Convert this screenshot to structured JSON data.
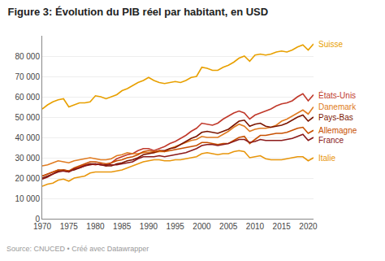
{
  "chart_data": {
    "type": "line",
    "title": "Figure 3: Évolution du PIB réel par habitant, en USD",
    "source": "Source: CNUCED • Créé avec Datawrapper",
    "x": [
      1970,
      1971,
      1972,
      1973,
      1974,
      1975,
      1976,
      1977,
      1978,
      1979,
      1980,
      1981,
      1982,
      1983,
      1984,
      1985,
      1986,
      1987,
      1988,
      1989,
      1990,
      1991,
      1992,
      1993,
      1994,
      1995,
      1996,
      1997,
      1998,
      1999,
      2000,
      2001,
      2002,
      2003,
      2004,
      2005,
      2006,
      2007,
      2008,
      2009,
      2010,
      2011,
      2012,
      2013,
      2014,
      2015,
      2016,
      2017,
      2018,
      2019,
      2020,
      2021
    ],
    "series": [
      {
        "name": "Suisse",
        "color": "#e8a000",
        "values": [
          54000,
          56000,
          57500,
          58500,
          59000,
          55000,
          56000,
          57000,
          57000,
          57500,
          60500,
          60000,
          59000,
          60000,
          61000,
          63000,
          64000,
          65500,
          67000,
          68000,
          69500,
          68000,
          67000,
          66500,
          67000,
          67500,
          67000,
          68000,
          69500,
          70000,
          74500,
          74000,
          73000,
          73000,
          74500,
          75500,
          77000,
          79000,
          80000,
          77500,
          80500,
          81000,
          80500,
          81000,
          82000,
          82500,
          82000,
          83000,
          84500,
          85500,
          83000,
          86000
        ]
      },
      {
        "name": "États-Unis",
        "color": "#c0392b",
        "values": [
          21000,
          22000,
          23000,
          24000,
          23500,
          23000,
          24500,
          25500,
          26500,
          27000,
          26500,
          27000,
          26000,
          27500,
          29500,
          30500,
          31500,
          32000,
          33500,
          34500,
          34500,
          33500,
          34500,
          35500,
          37000,
          38000,
          39500,
          41000,
          43000,
          44500,
          47000,
          46500,
          46000,
          47000,
          49000,
          50500,
          52000,
          53000,
          52000,
          49000,
          51000,
          52000,
          53000,
          54000,
          55500,
          56500,
          57000,
          58000,
          60000,
          61500,
          58000,
          61000
        ]
      },
      {
        "name": "Danemark",
        "color": "#e07b20",
        "values": [
          26000,
          26500,
          27500,
          28500,
          28000,
          27500,
          28500,
          29000,
          29500,
          30000,
          29500,
          29000,
          29000,
          29500,
          31000,
          31500,
          32500,
          32000,
          32000,
          32500,
          32500,
          32500,
          33000,
          33000,
          34500,
          35500,
          36500,
          37500,
          38500,
          39000,
          40500,
          40000,
          40000,
          40000,
          41500,
          43000,
          45000,
          46500,
          45500,
          43000,
          44000,
          44500,
          44500,
          45000,
          46000,
          48000,
          49000,
          50500,
          52000,
          53500,
          51500,
          55000
        ]
      },
      {
        "name": "Pays-Bas",
        "color": "#7b1500",
        "values": [
          20000,
          21000,
          22000,
          23500,
          24000,
          23500,
          24000,
          25000,
          26000,
          27000,
          27000,
          26500,
          26000,
          26000,
          27000,
          27500,
          28500,
          29000,
          30000,
          31500,
          32000,
          32500,
          33500,
          33500,
          34500,
          35000,
          36500,
          38000,
          39500,
          40500,
          42500,
          43000,
          42500,
          42000,
          43000,
          44000,
          46000,
          48000,
          48500,
          45500,
          46500,
          47000,
          45500,
          45000,
          45500,
          46000,
          47000,
          48500,
          50000,
          51000,
          48000,
          50000
        ]
      },
      {
        "name": "Allemagne",
        "color": "#c85000",
        "values": [
          21000,
          22000,
          23000,
          24000,
          24000,
          23500,
          25000,
          26000,
          27000,
          28000,
          28000,
          27500,
          27000,
          27500,
          28500,
          29000,
          30000,
          30500,
          31500,
          33000,
          33500,
          33000,
          33500,
          33000,
          33500,
          34000,
          34500,
          35000,
          35500,
          36000,
          37500,
          37500,
          37000,
          36500,
          37000,
          37000,
          38500,
          40000,
          40500,
          37000,
          39000,
          41000,
          41000,
          41500,
          42000,
          42000,
          42500,
          43500,
          44500,
          45000,
          42000,
          43500
        ]
      },
      {
        "name": "France",
        "color": "#8b1a1a",
        "values": [
          19500,
          20500,
          22000,
          23000,
          23500,
          23000,
          24500,
          25000,
          26000,
          26500,
          27000,
          26500,
          26500,
          26500,
          26500,
          27000,
          27500,
          28000,
          29500,
          30500,
          30500,
          30500,
          31000,
          30500,
          31000,
          31500,
          32000,
          32500,
          33500,
          34500,
          36000,
          36500,
          36500,
          36000,
          36500,
          37000,
          38000,
          39000,
          39000,
          37500,
          38000,
          39000,
          38500,
          38500,
          38500,
          38500,
          39000,
          39500,
          40500,
          41500,
          38500,
          40000
        ]
      },
      {
        "name": "Italie",
        "color": "#e8960c",
        "values": [
          16000,
          17000,
          17500,
          19000,
          19500,
          18500,
          20000,
          20500,
          21000,
          22500,
          23000,
          23000,
          23000,
          23000,
          23500,
          24000,
          25000,
          26000,
          27000,
          28000,
          28500,
          29000,
          29000,
          28500,
          28500,
          29000,
          29000,
          29500,
          30000,
          30500,
          32000,
          32500,
          32000,
          31500,
          32000,
          32000,
          33000,
          33500,
          33000,
          30000,
          30500,
          31000,
          29500,
          29000,
          29000,
          29000,
          29500,
          30000,
          30500,
          30500,
          28500,
          30000
        ]
      }
    ],
    "xlim": [
      1970,
      2021
    ],
    "xticks": [
      1970,
      1975,
      1980,
      1985,
      1990,
      1995,
      2000,
      2005,
      2010,
      2015,
      2020
    ],
    "ylim": [
      0,
      90000
    ],
    "yticks": [
      0,
      {
        "value": 10000,
        "label": "10 000"
      },
      {
        "value": 20000,
        "label": "20 000"
      },
      {
        "value": 30000,
        "label": "30 000"
      },
      {
        "value": 40000,
        "label": "40 000"
      },
      {
        "value": 50000,
        "label": "50 000"
      },
      {
        "value": 60000,
        "label": "60 000"
      },
      {
        "value": 70000,
        "label": "70 000"
      },
      {
        "value": 80000,
        "label": "80 000"
      }
    ],
    "grid": "y"
  }
}
